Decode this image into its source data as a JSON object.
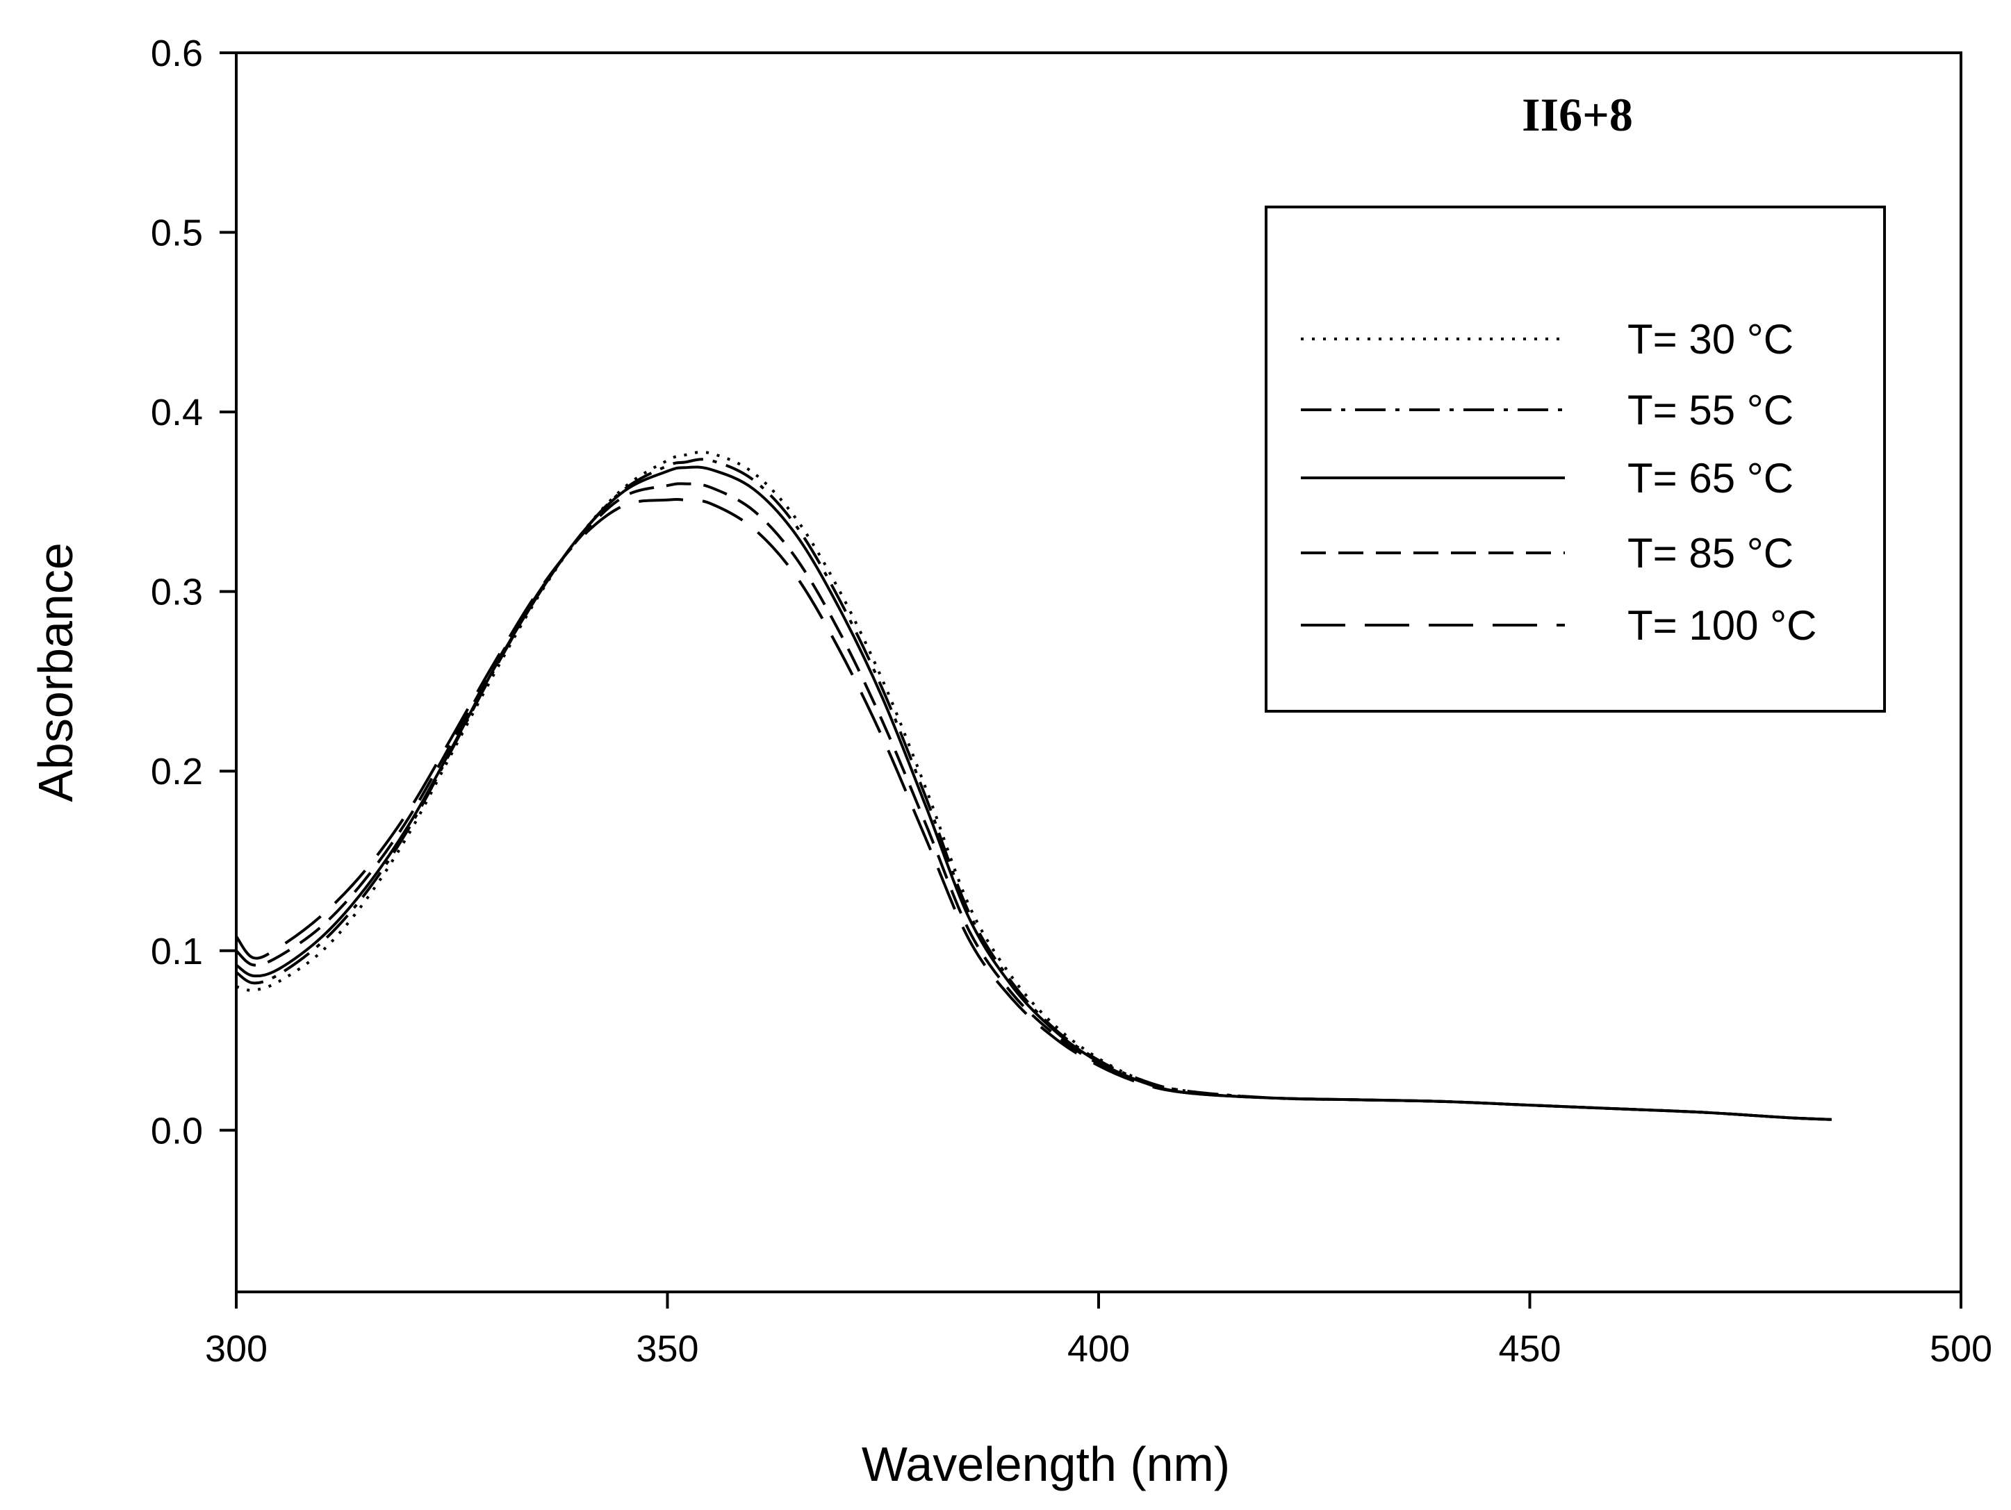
{
  "chart_data": {
    "type": "line",
    "title": "",
    "annotation": "II6+8",
    "xlabel": "Wavelength (nm)",
    "ylabel": "Absorbance",
    "xlim": [
      300,
      500
    ],
    "ylim": [
      -0.09,
      0.6
    ],
    "x_ticks": [
      300,
      350,
      400,
      450,
      500
    ],
    "x_tick_labels": [
      "300",
      "350",
      "400",
      "450",
      "500"
    ],
    "y_ticks": [
      0.0,
      0.1,
      0.2,
      0.3,
      0.4,
      0.5,
      0.6
    ],
    "y_tick_labels": [
      "0.0",
      "0.1",
      "0.2",
      "0.3",
      "0.4",
      "0.5",
      "0.6"
    ],
    "grid": false,
    "legend_position": "top-right",
    "x": [
      300,
      302,
      305,
      310,
      315,
      320,
      325,
      330,
      335,
      340,
      345,
      350,
      352,
      355,
      360,
      365,
      370,
      375,
      380,
      385,
      390,
      395,
      400,
      405,
      410,
      420,
      430,
      440,
      450,
      460,
      470,
      480,
      485
    ],
    "series": [
      {
        "name": "T= 30 °C",
        "style": "dotted",
        "values": [
          0.08,
          0.078,
          0.083,
          0.1,
          0.128,
          0.165,
          0.21,
          0.255,
          0.297,
          0.332,
          0.358,
          0.373,
          0.376,
          0.377,
          0.366,
          0.34,
          0.3,
          0.25,
          0.19,
          0.125,
          0.085,
          0.058,
          0.04,
          0.028,
          0.022,
          0.018,
          0.017,
          0.016,
          0.014,
          0.012,
          0.01,
          0.007,
          0.006
        ]
      },
      {
        "name": "T= 55 °C",
        "style": "dash-dot",
        "values": [
          0.088,
          0.082,
          0.087,
          0.105,
          0.132,
          0.168,
          0.212,
          0.257,
          0.298,
          0.332,
          0.357,
          0.37,
          0.372,
          0.373,
          0.362,
          0.336,
          0.295,
          0.245,
          0.185,
          0.121,
          0.082,
          0.056,
          0.039,
          0.028,
          0.022,
          0.018,
          0.017,
          0.016,
          0.014,
          0.012,
          0.01,
          0.007,
          0.006
        ]
      },
      {
        "name": "T= 65 °C",
        "style": "solid",
        "values": [
          0.092,
          0.086,
          0.09,
          0.108,
          0.135,
          0.17,
          0.213,
          0.258,
          0.298,
          0.332,
          0.356,
          0.367,
          0.369,
          0.368,
          0.357,
          0.331,
          0.29,
          0.24,
          0.18,
          0.118,
          0.08,
          0.055,
          0.038,
          0.027,
          0.021,
          0.018,
          0.017,
          0.016,
          0.014,
          0.012,
          0.01,
          0.007,
          0.006
        ]
      },
      {
        "name": "T= 85 °C",
        "style": "dashed",
        "values": [
          0.1,
          0.092,
          0.097,
          0.114,
          0.14,
          0.174,
          0.216,
          0.259,
          0.299,
          0.331,
          0.353,
          0.359,
          0.36,
          0.358,
          0.345,
          0.318,
          0.277,
          0.227,
          0.17,
          0.111,
          0.076,
          0.053,
          0.037,
          0.027,
          0.021,
          0.018,
          0.017,
          0.016,
          0.014,
          0.012,
          0.01,
          0.007,
          0.006
        ]
      },
      {
        "name": "T= 100 °C",
        "style": "long-dash",
        "values": [
          0.108,
          0.096,
          0.102,
          0.12,
          0.145,
          0.178,
          0.219,
          0.261,
          0.3,
          0.33,
          0.348,
          0.351,
          0.351,
          0.349,
          0.335,
          0.308,
          0.267,
          0.218,
          0.162,
          0.106,
          0.073,
          0.051,
          0.036,
          0.026,
          0.021,
          0.018,
          0.017,
          0.016,
          0.014,
          0.012,
          0.01,
          0.007,
          0.006
        ]
      }
    ]
  }
}
